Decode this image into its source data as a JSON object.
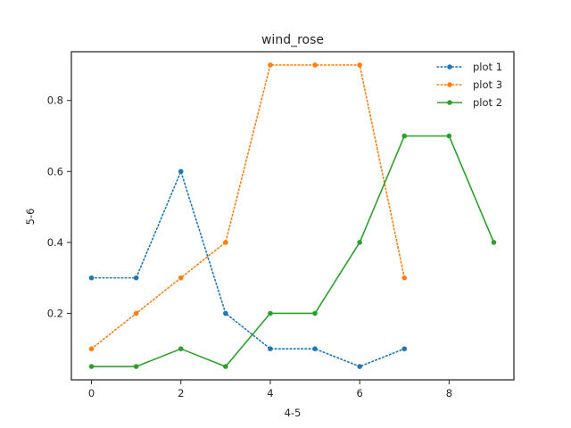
{
  "chart_data": {
    "type": "line",
    "title": "wind_rose",
    "xlabel": "4-5",
    "ylabel": "5-6",
    "xlim": [
      -0.45,
      9.45
    ],
    "ylim": [
      0.0125,
      0.9375
    ],
    "xticks": [
      0,
      2,
      4,
      6,
      8
    ],
    "xtick_labels": [
      "0",
      "2",
      "4",
      "6",
      "8"
    ],
    "yticks": [
      0.2,
      0.4,
      0.6,
      0.8
    ],
    "ytick_labels": [
      "0.2",
      "0.4",
      "0.6",
      "0.8"
    ],
    "grid": false,
    "legend_position": "top-right",
    "series": [
      {
        "name": "plot 1",
        "color": "#1f77b4",
        "linestyle": "dotted",
        "marker": "circle",
        "x": [
          0,
          1,
          2,
          3,
          4,
          5,
          6,
          7
        ],
        "y": [
          0.3,
          0.3,
          0.6,
          0.2,
          0.1,
          0.1,
          0.05,
          0.1
        ]
      },
      {
        "name": "plot 3",
        "color": "#ff7f0e",
        "linestyle": "dotted",
        "marker": "circle",
        "x": [
          0,
          1,
          2,
          3,
          4,
          5,
          6,
          7
        ],
        "y": [
          0.1,
          0.2,
          0.3,
          0.4,
          0.9,
          0.9,
          0.9,
          0.3
        ]
      },
      {
        "name": "plot 2",
        "color": "#2ca02c",
        "linestyle": "solid",
        "marker": "circle",
        "x": [
          0,
          1,
          2,
          3,
          4,
          5,
          6,
          7,
          8,
          9
        ],
        "y": [
          0.05,
          0.05,
          0.1,
          0.05,
          0.2,
          0.2,
          0.4,
          0.7,
          0.7,
          0.4
        ]
      }
    ]
  }
}
